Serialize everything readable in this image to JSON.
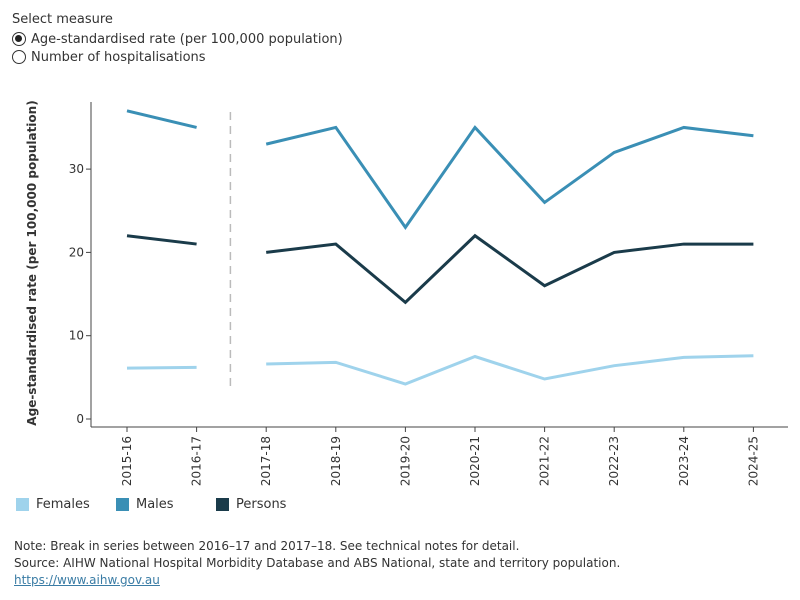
{
  "selector": {
    "title": "Select measure",
    "options": [
      {
        "label": "Age-standardised rate (per 100,000 population)",
        "selected": true
      },
      {
        "label": "Number of hospitalisations",
        "selected": false
      }
    ]
  },
  "chart_data": {
    "type": "line",
    "ylabel": "Age-standardised rate (per 100,000 population)",
    "xlabel": "",
    "ylim": [
      0,
      38
    ],
    "yticks": [
      0,
      10,
      20,
      30
    ],
    "categories": [
      "2015-16",
      "2016-17",
      "2017-18",
      "2018-19",
      "2019-20",
      "2020-21",
      "2021-22",
      "2022-23",
      "2023-24",
      "2024-25"
    ],
    "series_break_after": "2016-17",
    "series": [
      {
        "name": "Females",
        "color": "#9fd3ec",
        "values": [
          6.1,
          6.2,
          6.6,
          6.8,
          4.2,
          7.5,
          4.8,
          6.4,
          7.4,
          7.6
        ]
      },
      {
        "name": "Males",
        "color": "#3a8fb5",
        "values": [
          37,
          35,
          33,
          35,
          23,
          35,
          26,
          32,
          35,
          34
        ]
      },
      {
        "name": "Persons",
        "color": "#1a3b4a",
        "values": [
          22,
          21,
          20,
          21,
          14,
          22,
          16,
          20,
          21,
          21
        ]
      }
    ],
    "legend_position": "bottom-left"
  },
  "notes": {
    "note": "Note: Break in series between 2016–17 and 2017–18. See technical notes for detail.",
    "source": "Source: AIHW National Hospital Morbidity Database and ABS National, state and territory population.",
    "link": "https://www.aihw.gov.au"
  }
}
